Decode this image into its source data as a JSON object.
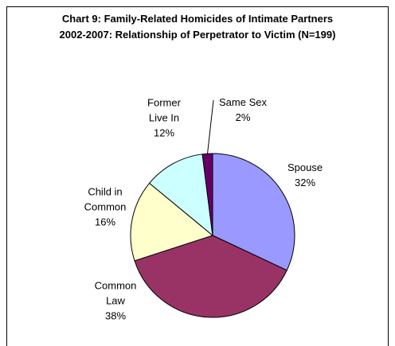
{
  "chart_data": {
    "type": "pie",
    "title": "Chart 9: Family-Related Homicides of Intimate Partners 2002-2007: Relationship of Perpetrator to Victim (N=199)",
    "categories": [
      "Spouse",
      "Common Law",
      "Child in Common",
      "Former Live In",
      "Same Sex"
    ],
    "values": [
      32,
      38,
      16,
      12,
      2
    ],
    "value_labels": [
      "32%",
      "38%",
      "16%",
      "12%",
      "2%"
    ],
    "colors": [
      "#9999ff",
      "#993366",
      "#ffffcc",
      "#ccffff",
      "#660066"
    ]
  }
}
